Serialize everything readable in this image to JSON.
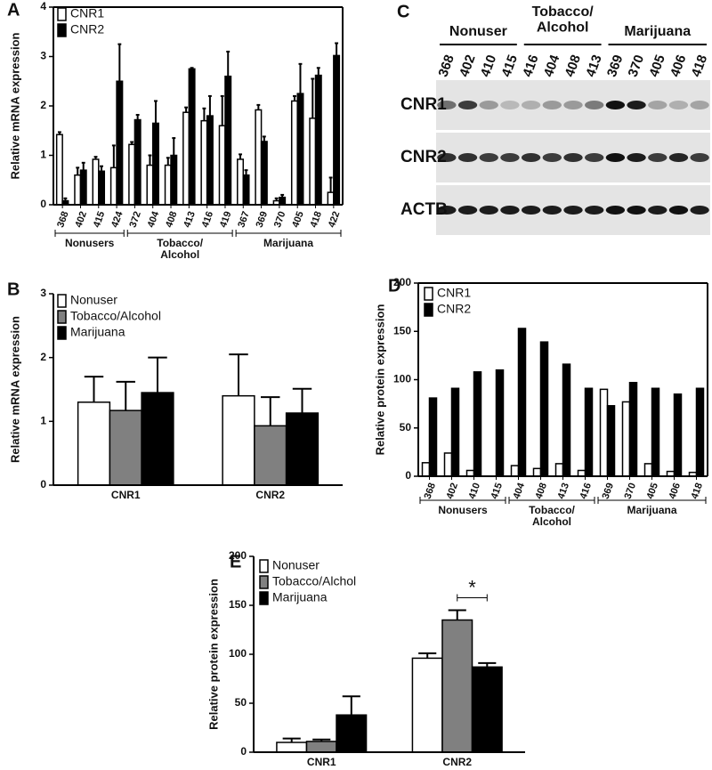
{
  "chart_data": [
    {
      "type": "bar",
      "panel": "A",
      "ylabel": "Relative mRNA expression",
      "categories": [
        "368",
        "402",
        "415",
        "424",
        "372",
        "404",
        "408",
        "413",
        "416",
        "419",
        "367",
        "369",
        "370",
        "405",
        "418",
        "422"
      ],
      "groups": [
        {
          "name": "Nonusers",
          "size": 4
        },
        {
          "name": "Tobacco/\nAlcohol",
          "size": 6
        },
        {
          "name": "Marijuana",
          "size": 6
        }
      ],
      "series": [
        {
          "name": "CNR1",
          "color": "#ffffff",
          "values": [
            1.42,
            0.6,
            0.92,
            0.75,
            1.22,
            0.8,
            0.8,
            1.87,
            1.7,
            1.6,
            0.92,
            1.92,
            0.08,
            2.1,
            1.75,
            0.25
          ],
          "errors": [
            0.05,
            0.15,
            0.05,
            0.45,
            0.05,
            0.2,
            0.15,
            0.1,
            0.25,
            0.6,
            0.1,
            0.1,
            0.05,
            0.1,
            0.8,
            0.3
          ]
        },
        {
          "name": "CNR2",
          "color": "#000000",
          "values": [
            0.08,
            0.7,
            0.68,
            2.5,
            1.72,
            1.65,
            1.0,
            2.75,
            1.8,
            2.6,
            0.6,
            1.28,
            0.15,
            2.25,
            2.62,
            3.02
          ],
          "errors": [
            0.05,
            0.15,
            0.1,
            0.75,
            0.1,
            0.45,
            0.35,
            0.02,
            0.4,
            0.5,
            0.1,
            0.1,
            0.05,
            0.6,
            0.15,
            0.25
          ]
        }
      ],
      "ylim": [
        0,
        4
      ],
      "yticks": [
        0,
        1,
        2,
        3,
        4
      ]
    },
    {
      "type": "blot",
      "panel": "C",
      "groups": [
        {
          "name": "Nonuser",
          "size": 4
        },
        {
          "name": "Tobacco/\nAlcohol",
          "size": 4
        },
        {
          "name": "Marijuana",
          "size": 5
        }
      ],
      "lanes": [
        "368",
        "402",
        "410",
        "415",
        "416",
        "404",
        "408",
        "413",
        "369",
        "370",
        "405",
        "406",
        "418"
      ],
      "rows": [
        "CNR1",
        "CNR2",
        "ACTB"
      ]
    },
    {
      "type": "bar",
      "panel": "B",
      "ylabel": "Relative mRNA expression",
      "categories": [
        "CNR1",
        "CNR2"
      ],
      "series": [
        {
          "name": "Nonuser",
          "color": "#ffffff",
          "values": [
            1.3,
            1.4
          ],
          "errors": [
            0.4,
            0.65
          ]
        },
        {
          "name": "Tobacco/Alcohol",
          "color": "#808080",
          "values": [
            1.17,
            0.93
          ],
          "errors": [
            0.45,
            0.45
          ]
        },
        {
          "name": "Marijuana",
          "color": "#000000",
          "values": [
            1.45,
            1.13
          ],
          "errors": [
            0.55,
            0.38
          ]
        }
      ],
      "ylim": [
        0,
        3
      ],
      "yticks": [
        0,
        1,
        2,
        3
      ]
    },
    {
      "type": "bar",
      "panel": "D",
      "ylabel": "Relative protein expression",
      "categories": [
        "368",
        "402",
        "410",
        "415",
        "404",
        "408",
        "413",
        "416",
        "369",
        "370",
        "405",
        "406",
        "418"
      ],
      "groups": [
        {
          "name": "Nonusers",
          "size": 4
        },
        {
          "name": "Tobacco/\nAlcohol",
          "size": 4
        },
        {
          "name": "Marijuana",
          "size": 5
        }
      ],
      "series": [
        {
          "name": "CNR1",
          "color": "#ffffff",
          "values": [
            14,
            24,
            6,
            0,
            11,
            8,
            13,
            6,
            90,
            77,
            13,
            5,
            4
          ]
        },
        {
          "name": "CNR2",
          "color": "#000000",
          "values": [
            81,
            91,
            108,
            110,
            153,
            139,
            116,
            91,
            73,
            97,
            91,
            85,
            91
          ]
        }
      ],
      "ylim": [
        0,
        200
      ],
      "yticks": [
        0,
        50,
        100,
        150,
        200
      ]
    },
    {
      "type": "bar",
      "panel": "E",
      "ylabel": "Relative protein expression",
      "annotation": "*",
      "categories": [
        "CNR1",
        "CNR2"
      ],
      "series": [
        {
          "name": "Nonuser",
          "color": "#ffffff",
          "values": [
            10,
            96
          ],
          "errors": [
            4,
            5
          ]
        },
        {
          "name": "Tobacco/Alchol",
          "color": "#808080",
          "values": [
            11,
            135
          ],
          "errors": [
            2,
            10
          ]
        },
        {
          "name": "Marijuana",
          "color": "#000000",
          "values": [
            38,
            87
          ],
          "errors": [
            19,
            4
          ]
        }
      ],
      "ylim": [
        0,
        200
      ],
      "yticks": [
        0,
        50,
        100,
        150,
        200
      ]
    }
  ]
}
